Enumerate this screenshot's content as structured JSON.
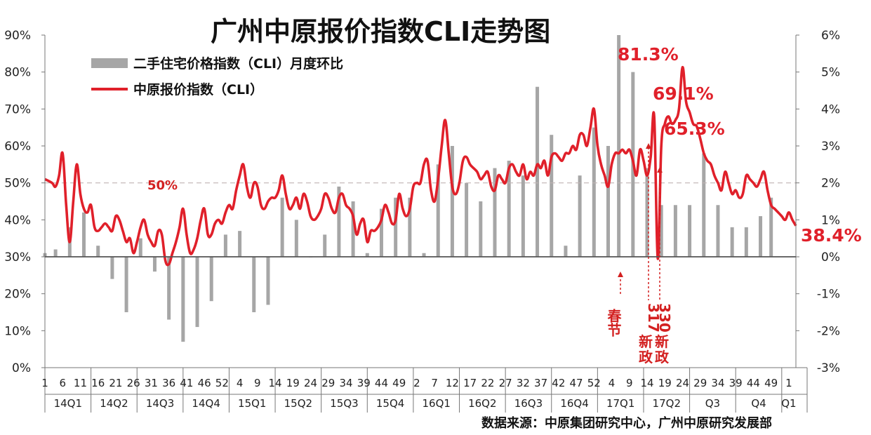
{
  "chart_data": {
    "type": "bar+line",
    "title": "广州中原报价指数CLI走势图",
    "source": "数据来源：中原集团研究中心，广州中原研究发展部",
    "legend": [
      "二手住宅价格指数（CLI）月度环比",
      "中原报价指数（CLI）"
    ],
    "left_axis": {
      "ticks": [
        "0%",
        "10%",
        "20%",
        "30%",
        "40%",
        "50%",
        "60%",
        "70%",
        "80%",
        "90%"
      ],
      "ylim": [
        0,
        90
      ]
    },
    "right_axis": {
      "ticks": [
        "-3%",
        "-2%",
        "-1%",
        "0%",
        "1%",
        "2%",
        "3%",
        "4%",
        "5%",
        "6%"
      ],
      "ylim": [
        -3,
        6
      ]
    },
    "x_ticks": [
      "1",
      "6",
      "11",
      "16",
      "21",
      "26",
      "31",
      "36",
      "41",
      "46",
      "52",
      "4",
      "9",
      "14",
      "19",
      "24",
      "29",
      "34",
      "39",
      "44",
      "49",
      "2",
      "7",
      "12",
      "17",
      "22",
      "27",
      "32",
      "37",
      "42",
      "47",
      "52",
      "4",
      "9",
      "14",
      "19",
      "24",
      "29",
      "34",
      "39",
      "44",
      "49",
      "1"
    ],
    "quarters": [
      "14Q1",
      "14Q2",
      "14Q3",
      "14Q4",
      "15Q1",
      "15Q2",
      "15Q3",
      "15Q4",
      "16Q1",
      "16Q2",
      "16Q3",
      "16Q4",
      "17Q1",
      "17Q2",
      "Q3",
      "Q4",
      "Q1"
    ],
    "reference_line": {
      "value": 50,
      "label": "50%"
    },
    "bar_series": {
      "name": "二手住宅价格指数（CLI）月度环比",
      "points": [
        [
          0,
          0.1
        ],
        [
          3,
          0.2
        ],
        [
          7,
          0.8
        ],
        [
          11,
          1.2
        ],
        [
          15,
          0.3
        ],
        [
          19,
          -0.6
        ],
        [
          23,
          -1.5
        ],
        [
          27,
          0.5
        ],
        [
          31,
          -0.4
        ],
        [
          35,
          -1.7
        ],
        [
          39,
          -2.3
        ],
        [
          43,
          -1.9
        ],
        [
          47,
          -1.2
        ],
        [
          51,
          0.6
        ],
        [
          55,
          0.7
        ],
        [
          59,
          -1.5
        ],
        [
          63,
          -1.3
        ],
        [
          67,
          1.6
        ],
        [
          71,
          1.0
        ],
        [
          75,
          0.0
        ],
        [
          79,
          0.6
        ],
        [
          83,
          1.9
        ],
        [
          87,
          1.5
        ],
        [
          91,
          0.1
        ],
        [
          95,
          1.3
        ],
        [
          99,
          1.6
        ],
        [
          103,
          1.6
        ],
        [
          107,
          0.1
        ],
        [
          111,
          2.5
        ],
        [
          115,
          3.0
        ],
        [
          119,
          2.0
        ],
        [
          123,
          1.5
        ],
        [
          127,
          2.4
        ],
        [
          131,
          2.6
        ],
        [
          135,
          2.2
        ],
        [
          139,
          4.6
        ],
        [
          143,
          3.3
        ],
        [
          147,
          0.3
        ],
        [
          151,
          2.2
        ],
        [
          155,
          3.5
        ],
        [
          159,
          3.0
        ],
        [
          162,
          6.0
        ],
        [
          166,
          5.0
        ],
        [
          170,
          2.4
        ],
        [
          174,
          1.4
        ],
        [
          178,
          1.4
        ],
        [
          182,
          1.4
        ],
        [
          186,
          2.8
        ],
        [
          190,
          1.4
        ],
        [
          194,
          0.8
        ],
        [
          198,
          0.8
        ],
        [
          202,
          1.1
        ],
        [
          205,
          1.6
        ]
      ]
    },
    "line_series": {
      "name": "中原报价指数（CLI）",
      "points": [
        [
          0,
          51
        ],
        [
          2,
          50
        ],
        [
          3,
          49
        ],
        [
          4,
          52
        ],
        [
          5,
          58
        ],
        [
          6,
          44
        ],
        [
          7,
          34
        ],
        [
          8,
          45
        ],
        [
          9,
          55
        ],
        [
          10,
          47
        ],
        [
          11,
          43
        ],
        [
          12,
          42
        ],
        [
          13,
          44
        ],
        [
          14,
          38
        ],
        [
          15,
          37
        ],
        [
          16,
          38
        ],
        [
          17,
          39
        ],
        [
          18,
          38
        ],
        [
          19,
          37
        ],
        [
          20,
          41
        ],
        [
          21,
          40
        ],
        [
          22,
          37
        ],
        [
          23,
          34
        ],
        [
          24,
          35
        ],
        [
          25,
          31
        ],
        [
          26,
          34
        ],
        [
          27,
          38
        ],
        [
          28,
          40
        ],
        [
          29,
          36
        ],
        [
          30,
          34
        ],
        [
          31,
          33
        ],
        [
          32,
          37
        ],
        [
          33,
          36
        ],
        [
          34,
          29
        ],
        [
          35,
          28
        ],
        [
          36,
          31
        ],
        [
          37,
          34
        ],
        [
          38,
          38
        ],
        [
          39,
          43
        ],
        [
          40,
          36
        ],
        [
          41,
          31
        ],
        [
          42,
          32
        ],
        [
          43,
          35
        ],
        [
          44,
          40
        ],
        [
          45,
          43
        ],
        [
          46,
          36
        ],
        [
          47,
          36
        ],
        [
          48,
          39
        ],
        [
          49,
          40
        ],
        [
          50,
          39
        ],
        [
          51,
          42
        ],
        [
          52,
          44
        ],
        [
          53,
          43
        ],
        [
          54,
          48
        ],
        [
          55,
          52
        ],
        [
          56,
          55
        ],
        [
          57,
          49
        ],
        [
          58,
          46
        ],
        [
          59,
          50
        ],
        [
          60,
          49
        ],
        [
          61,
          44
        ],
        [
          62,
          43
        ],
        [
          63,
          45
        ],
        [
          64,
          46
        ],
        [
          65,
          46
        ],
        [
          66,
          48
        ],
        [
          67,
          52
        ],
        [
          68,
          47
        ],
        [
          69,
          43
        ],
        [
          70,
          44
        ],
        [
          71,
          46
        ],
        [
          72,
          43
        ],
        [
          73,
          47
        ],
        [
          74,
          45
        ],
        [
          75,
          41
        ],
        [
          76,
          40
        ],
        [
          77,
          41
        ],
        [
          78,
          43
        ],
        [
          79,
          47
        ],
        [
          80,
          46
        ],
        [
          81,
          43
        ],
        [
          82,
          42
        ],
        [
          83,
          46
        ],
        [
          84,
          47
        ],
        [
          85,
          44
        ],
        [
          86,
          43
        ],
        [
          87,
          41
        ],
        [
          88,
          36
        ],
        [
          89,
          39
        ],
        [
          90,
          40
        ],
        [
          91,
          34
        ],
        [
          92,
          37
        ],
        [
          93,
          37
        ],
        [
          94,
          38
        ],
        [
          95,
          40
        ],
        [
          96,
          44
        ],
        [
          97,
          42
        ],
        [
          98,
          39
        ],
        [
          99,
          40
        ],
        [
          100,
          47
        ],
        [
          101,
          43
        ],
        [
          102,
          41
        ],
        [
          103,
          43
        ],
        [
          104,
          49
        ],
        [
          105,
          50
        ],
        [
          106,
          50
        ],
        [
          107,
          55
        ],
        [
          108,
          56
        ],
        [
          109,
          48
        ],
        [
          110,
          45
        ],
        [
          111,
          51
        ],
        [
          112,
          60
        ],
        [
          113,
          67
        ],
        [
          114,
          58
        ],
        [
          115,
          49
        ],
        [
          116,
          47
        ],
        [
          117,
          50
        ],
        [
          118,
          56
        ],
        [
          119,
          57
        ],
        [
          120,
          55
        ],
        [
          121,
          54
        ],
        [
          122,
          53
        ],
        [
          123,
          51
        ],
        [
          124,
          52
        ],
        [
          125,
          53
        ],
        [
          126,
          49
        ],
        [
          127,
          48
        ],
        [
          128,
          52
        ],
        [
          129,
          51
        ],
        [
          130,
          50
        ],
        [
          131,
          54
        ],
        [
          132,
          55
        ],
        [
          133,
          53
        ],
        [
          134,
          52
        ],
        [
          135,
          55
        ],
        [
          136,
          51
        ],
        [
          137,
          53
        ],
        [
          138,
          52
        ],
        [
          139,
          55
        ],
        [
          140,
          54
        ],
        [
          141,
          56
        ],
        [
          142,
          52
        ],
        [
          143,
          57
        ],
        [
          144,
          58
        ],
        [
          145,
          57
        ],
        [
          146,
          56
        ],
        [
          147,
          58
        ],
        [
          148,
          58
        ],
        [
          149,
          60
        ],
        [
          150,
          59
        ],
        [
          151,
          63
        ],
        [
          152,
          63
        ],
        [
          153,
          60
        ],
        [
          154,
          65
        ],
        [
          155,
          70
        ],
        [
          156,
          60
        ],
        [
          157,
          55
        ],
        [
          158,
          52
        ],
        [
          159,
          49
        ],
        [
          160,
          55
        ],
        [
          161,
          58
        ],
        [
          162,
          58
        ],
        [
          163,
          59
        ],
        [
          164,
          58
        ],
        [
          165,
          59
        ],
        [
          166,
          56
        ],
        [
          167,
          52
        ],
        [
          168,
          59
        ],
        [
          169,
          56
        ],
        [
          170,
          52
        ],
        [
          171,
          57
        ],
        [
          172,
          68
        ],
        [
          173,
          29.5
        ],
        [
          174,
          60
        ],
        [
          175,
          66
        ],
        [
          176,
          68
        ],
        [
          177,
          66
        ],
        [
          178,
          67
        ],
        [
          179,
          70
        ],
        [
          180,
          81.3
        ],
        [
          181,
          72
        ],
        [
          182,
          69.1
        ],
        [
          183,
          66
        ],
        [
          184,
          65.3
        ],
        [
          185,
          62
        ],
        [
          186,
          58
        ],
        [
          187,
          56
        ],
        [
          188,
          55
        ],
        [
          189,
          52
        ],
        [
          190,
          50
        ],
        [
          191,
          48
        ],
        [
          192,
          53
        ],
        [
          193,
          50
        ],
        [
          194,
          47
        ],
        [
          195,
          48
        ],
        [
          196,
          46
        ],
        [
          197,
          47
        ],
        [
          198,
          52
        ],
        [
          199,
          51
        ],
        [
          200,
          50
        ],
        [
          201,
          49
        ],
        [
          202,
          51
        ],
        [
          203,
          53
        ],
        [
          204,
          48
        ],
        [
          205,
          44
        ],
        [
          206,
          43
        ],
        [
          207,
          42
        ],
        [
          208,
          41
        ],
        [
          209,
          40
        ],
        [
          210,
          42
        ],
        [
          211,
          40
        ],
        [
          212,
          38.4
        ]
      ]
    },
    "annotations": {
      "peak1": "81.3%",
      "peak2": "69.1%",
      "peak3": "65.3%",
      "last": "38.4%",
      "spring_festival": "春节",
      "policy_317": [
        "317",
        "新",
        "政"
      ],
      "policy_330": [
        "330",
        "新",
        "政"
      ]
    },
    "colors": {
      "line": "#e0202a",
      "bar": "#a6a6a6",
      "axis": "#777777",
      "refline": "#c0b4b4"
    }
  }
}
